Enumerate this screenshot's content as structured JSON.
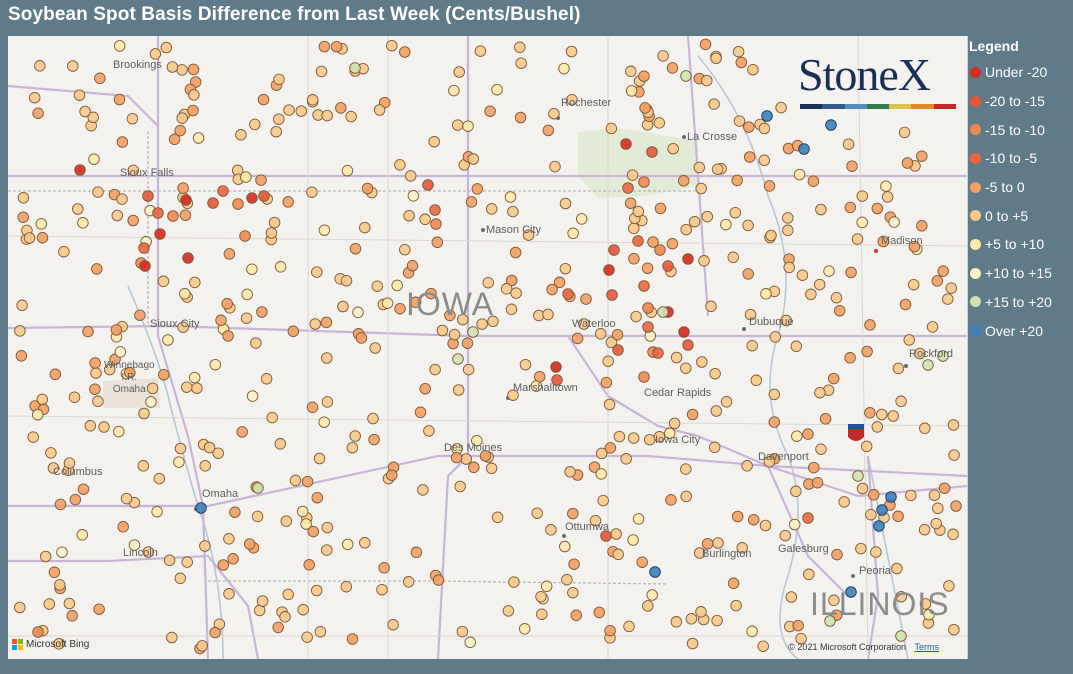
{
  "title": "Soybean Spot Basis Difference from Last Week (Cents/Bushel)",
  "legend": {
    "title": "Legend",
    "items": [
      {
        "label": "Under -20",
        "color": "#d32b1e"
      },
      {
        "label": "-20 to -15",
        "color": "#e5573a"
      },
      {
        "label": "-15 to -10",
        "color": "#ef8a4f"
      },
      {
        "label": "-10 to -5",
        "color": "#e9673f"
      },
      {
        "label": "-5 to 0",
        "color": "#f2a062"
      },
      {
        "label": "0 to +5",
        "color": "#f8c98a"
      },
      {
        "label": "+5 to +10",
        "color": "#fbeaa8"
      },
      {
        "label": "+10 to +15",
        "color": "#f6f3c8"
      },
      {
        "label": "+15 to +20",
        "color": "#cfe3b0"
      },
      {
        "label": "Over +20",
        "color": "#3d7fb8"
      }
    ]
  },
  "map": {
    "state_labels": {
      "iowa": "IOWA",
      "illinois": "ILLINOIS"
    },
    "cities": {
      "brookings": "Brookings",
      "rochester": "Rochester",
      "la_crosse": "La Crosse",
      "sioux_falls": "Sioux Falls",
      "mason_city": "Mason City",
      "madison": "Madison",
      "sioux_city": "Sioux City",
      "waterloo": "Waterloo",
      "dubuque": "Dubuque",
      "rockford": "Rockford",
      "winnebago": "Winnebago\nI.R.\nOmaha",
      "marshalltown": "Marshalltown",
      "cedar_rapids": "Cedar Rapids",
      "des_moines": "Des Moines",
      "iowa_city": "Iowa City",
      "davenport": "Davenport",
      "columbus": "Columbus",
      "omaha": "Omaha",
      "ottumwa": "Ottumwa",
      "burlington": "Burlington",
      "galesburg": "Galesburg",
      "lincoln": "Lincoln",
      "peoria": "Peoria"
    },
    "shield_number": "80",
    "attribution": {
      "bing": "Microsoft Bing",
      "copyright": "© 2021 Microsoft Corporation",
      "terms": "Terms"
    }
  },
  "logo": {
    "text": "StoneX",
    "bar_colors": [
      "#1b2e56",
      "#2e5c8a",
      "#4f8fbf",
      "#2f7a4f",
      "#d9c34a",
      "#e08a2a",
      "#c22a2a"
    ]
  }
}
